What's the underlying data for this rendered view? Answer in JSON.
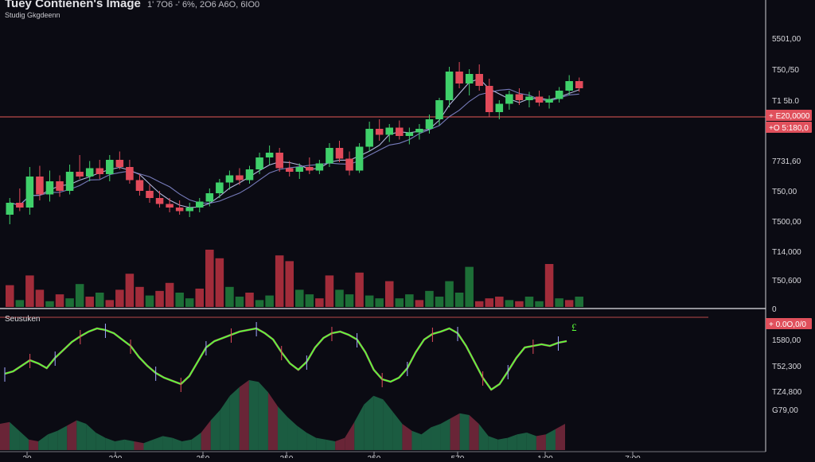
{
  "header": {
    "title": "Tuey Contienen's Image",
    "ohlc_readout": "1' 7O6 -' 6%, 2O6 A6O, 6IO0",
    "subtitle": "Studig Gkgdeenn"
  },
  "lower_panel": {
    "label": "Seusuken",
    "marker_glyph": "£"
  },
  "colors": {
    "background": "#0b0b13",
    "bull": "#3fd06a",
    "bear": "#e24a5a",
    "hline": "#b94a4a",
    "ma": "#cfd4ff",
    "osc": "#5aff3a",
    "area_green": "#1f6b4a",
    "area_red": "#7a2a3e",
    "tag": "#e0505c"
  },
  "chart_data": [
    {
      "type": "candlestick",
      "title": "Tuey Contienen's Image",
      "subtitle": "Studig Gkgdeenn",
      "y_axis_side": "right",
      "ylim": [
        1480,
        1640
      ],
      "price_ticks": [
        "5501,00",
        "T50,/50",
        "T1 5b.0",
        "7731,60",
        "T50,00",
        "T500,00",
        "T14,000",
        "T50,600",
        "0"
      ],
      "x_ticks": [
        "20",
        "320",
        "250",
        "350",
        "350",
        "570",
        "1:90",
        "7:00"
      ],
      "horizontal_line": {
        "value": 1582,
        "color": "#b94a4a"
      },
      "price_tags": [
        "+ E20,0000",
        "+O 5:180,0"
      ],
      "grid": false,
      "candles": [
        [
          1500,
          1514,
          1492,
          1510
        ],
        [
          1510,
          1522,
          1503,
          1506
        ],
        [
          1506,
          1540,
          1500,
          1532
        ],
        [
          1532,
          1541,
          1512,
          1517
        ],
        [
          1517,
          1537,
          1511,
          1528
        ],
        [
          1528,
          1533,
          1515,
          1520
        ],
        [
          1520,
          1542,
          1517,
          1536
        ],
        [
          1536,
          1550,
          1530,
          1532
        ],
        [
          1532,
          1545,
          1528,
          1539
        ],
        [
          1539,
          1546,
          1530,
          1534
        ],
        [
          1534,
          1550,
          1528,
          1546
        ],
        [
          1546,
          1553,
          1538,
          1540
        ],
        [
          1540,
          1546,
          1526,
          1529
        ],
        [
          1529,
          1534,
          1516,
          1520
        ],
        [
          1520,
          1525,
          1510,
          1514
        ],
        [
          1514,
          1520,
          1506,
          1509
        ],
        [
          1509,
          1514,
          1502,
          1506
        ],
        [
          1506,
          1512,
          1500,
          1503
        ],
        [
          1503,
          1510,
          1498,
          1506
        ],
        [
          1506,
          1514,
          1502,
          1511
        ],
        [
          1511,
          1522,
          1507,
          1518
        ],
        [
          1518,
          1530,
          1514,
          1527
        ],
        [
          1527,
          1537,
          1521,
          1533
        ],
        [
          1533,
          1539,
          1525,
          1529
        ],
        [
          1529,
          1541,
          1526,
          1538
        ],
        [
          1538,
          1552,
          1534,
          1548
        ],
        [
          1548,
          1558,
          1542,
          1552
        ],
        [
          1552,
          1556,
          1536,
          1539
        ],
        [
          1539,
          1545,
          1532,
          1536
        ],
        [
          1536,
          1543,
          1530,
          1540
        ],
        [
          1540,
          1548,
          1534,
          1537
        ],
        [
          1537,
          1546,
          1534,
          1543
        ],
        [
          1543,
          1560,
          1540,
          1556
        ],
        [
          1556,
          1562,
          1544,
          1547
        ],
        [
          1547,
          1553,
          1533,
          1537
        ],
        [
          1537,
          1560,
          1535,
          1557
        ],
        [
          1557,
          1578,
          1553,
          1572
        ],
        [
          1572,
          1580,
          1562,
          1567
        ],
        [
          1567,
          1576,
          1561,
          1573
        ],
        [
          1573,
          1579,
          1563,
          1566
        ],
        [
          1566,
          1573,
          1559,
          1569
        ],
        [
          1569,
          1576,
          1563,
          1572
        ],
        [
          1572,
          1584,
          1568,
          1580
        ],
        [
          1580,
          1598,
          1575,
          1596
        ],
        [
          1596,
          1624,
          1590,
          1620
        ],
        [
          1620,
          1628,
          1606,
          1610
        ],
        [
          1610,
          1622,
          1600,
          1618
        ],
        [
          1618,
          1626,
          1604,
          1608
        ],
        [
          1608,
          1614,
          1582,
          1586
        ],
        [
          1586,
          1596,
          1580,
          1593
        ],
        [
          1593,
          1604,
          1588,
          1601
        ],
        [
          1601,
          1606,
          1592,
          1596
        ],
        [
          1596,
          1603,
          1590,
          1599
        ],
        [
          1599,
          1604,
          1591,
          1594
        ],
        [
          1594,
          1600,
          1589,
          1597
        ],
        [
          1597,
          1607,
          1594,
          1604
        ],
        [
          1604,
          1617,
          1600,
          1612
        ],
        [
          1612,
          1615,
          1603,
          1606
        ]
      ],
      "volume": [
        {
          "v": 0.38,
          "dir": "bear"
        },
        {
          "v": 0.12,
          "dir": "bull"
        },
        {
          "v": 0.55,
          "dir": "bear"
        },
        {
          "v": 0.3,
          "dir": "bear"
        },
        {
          "v": 0.1,
          "dir": "bull"
        },
        {
          "v": 0.22,
          "dir": "bear"
        },
        {
          "v": 0.15,
          "dir": "bull"
        },
        {
          "v": 0.4,
          "dir": "bull"
        },
        {
          "v": 0.18,
          "dir": "bear"
        },
        {
          "v": 0.25,
          "dir": "bull"
        },
        {
          "v": 0.12,
          "dir": "bear"
        },
        {
          "v": 0.3,
          "dir": "bear"
        },
        {
          "v": 0.58,
          "dir": "bear"
        },
        {
          "v": 0.35,
          "dir": "bear"
        },
        {
          "v": 0.2,
          "dir": "bull"
        },
        {
          "v": 0.28,
          "dir": "bear"
        },
        {
          "v": 0.42,
          "dir": "bear"
        },
        {
          "v": 0.25,
          "dir": "bull"
        },
        {
          "v": 0.15,
          "dir": "bull"
        },
        {
          "v": 0.32,
          "dir": "bear"
        },
        {
          "v": 1.0,
          "dir": "bear"
        },
        {
          "v": 0.85,
          "dir": "bear"
        },
        {
          "v": 0.35,
          "dir": "bull"
        },
        {
          "v": 0.18,
          "dir": "bull"
        },
        {
          "v": 0.25,
          "dir": "bear"
        },
        {
          "v": 0.12,
          "dir": "bull"
        },
        {
          "v": 0.2,
          "dir": "bull"
        },
        {
          "v": 0.9,
          "dir": "bear"
        },
        {
          "v": 0.8,
          "dir": "bear"
        },
        {
          "v": 0.3,
          "dir": "bull"
        },
        {
          "v": 0.22,
          "dir": "bull"
        },
        {
          "v": 0.15,
          "dir": "bear"
        },
        {
          "v": 0.55,
          "dir": "bear"
        },
        {
          "v": 0.3,
          "dir": "bull"
        },
        {
          "v": 0.22,
          "dir": "bull"
        },
        {
          "v": 0.6,
          "dir": "bear"
        },
        {
          "v": 0.2,
          "dir": "bull"
        },
        {
          "v": 0.15,
          "dir": "bull"
        },
        {
          "v": 0.45,
          "dir": "bear"
        },
        {
          "v": 0.15,
          "dir": "bull"
        },
        {
          "v": 0.22,
          "dir": "bull"
        },
        {
          "v": 0.12,
          "dir": "bear"
        },
        {
          "v": 0.28,
          "dir": "bull"
        },
        {
          "v": 0.18,
          "dir": "bull"
        },
        {
          "v": 0.45,
          "dir": "bull"
        },
        {
          "v": 0.25,
          "dir": "bull"
        },
        {
          "v": 0.7,
          "dir": "bull"
        },
        {
          "v": 0.1,
          "dir": "bear"
        },
        {
          "v": 0.15,
          "dir": "bear"
        },
        {
          "v": 0.18,
          "dir": "bear"
        },
        {
          "v": 0.12,
          "dir": "bull"
        },
        {
          "v": 0.1,
          "dir": "bear"
        },
        {
          "v": 0.18,
          "dir": "bull"
        },
        {
          "v": 0.1,
          "dir": "bull"
        },
        {
          "v": 0.75,
          "dir": "bear"
        },
        {
          "v": 0.15,
          "dir": "bull"
        },
        {
          "v": 0.12,
          "dir": "bear"
        },
        {
          "v": 0.18,
          "dir": "bull"
        }
      ]
    },
    {
      "type": "line",
      "title": "Seusuken",
      "y_axis_side": "right",
      "price_ticks": [
        "1580,00",
        "T52,300",
        "TZ4,800",
        "G79,00"
      ],
      "price_tags": [
        "+ 0.0O,0/0"
      ],
      "oscillator": [
        0.35,
        0.38,
        0.45,
        0.52,
        0.48,
        0.42,
        0.55,
        0.65,
        0.75,
        0.82,
        0.88,
        0.92,
        0.9,
        0.86,
        0.78,
        0.7,
        0.56,
        0.45,
        0.36,
        0.3,
        0.26,
        0.22,
        0.32,
        0.5,
        0.68,
        0.76,
        0.8,
        0.84,
        0.88,
        0.9,
        0.92,
        0.86,
        0.78,
        0.62,
        0.48,
        0.4,
        0.5,
        0.68,
        0.8,
        0.86,
        0.88,
        0.84,
        0.78,
        0.62,
        0.4,
        0.28,
        0.25,
        0.3,
        0.42,
        0.62,
        0.78,
        0.85,
        0.88,
        0.92,
        0.86,
        0.7,
        0.5,
        0.3,
        0.15,
        0.22,
        0.38,
        0.55,
        0.68,
        0.7,
        0.72,
        0.7,
        0.74,
        0.76
      ],
      "area": [
        0.3,
        0.32,
        0.22,
        0.12,
        0.1,
        0.18,
        0.22,
        0.28,
        0.34,
        0.3,
        0.2,
        0.14,
        0.1,
        0.12,
        0.1,
        0.08,
        0.12,
        0.16,
        0.14,
        0.1,
        0.12,
        0.2,
        0.34,
        0.46,
        0.62,
        0.72,
        0.8,
        0.78,
        0.66,
        0.5,
        0.38,
        0.28,
        0.2,
        0.14,
        0.12,
        0.1,
        0.14,
        0.32,
        0.52,
        0.62,
        0.58,
        0.44,
        0.3,
        0.22,
        0.18,
        0.26,
        0.3,
        0.36,
        0.42,
        0.4,
        0.3,
        0.16,
        0.12,
        0.14,
        0.18,
        0.2,
        0.16,
        0.18,
        0.24,
        0.3
      ]
    }
  ]
}
